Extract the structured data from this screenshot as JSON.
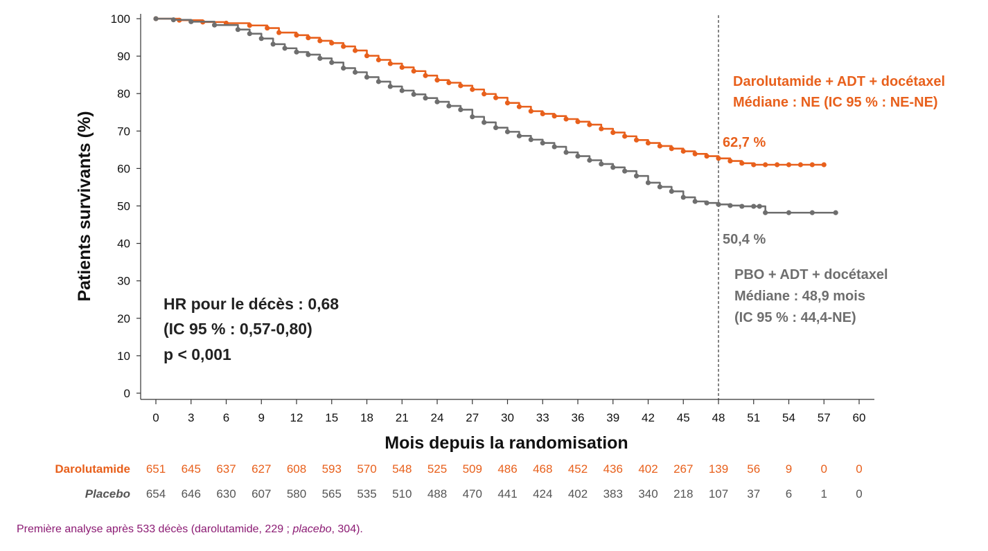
{
  "chart_data": {
    "type": "line",
    "xlabel": "Mois depuis la randomisation",
    "ylabel": "Patients survivants (%)",
    "xlim": [
      0,
      60
    ],
    "ylim": [
      0,
      100
    ],
    "xticks": [
      "0",
      "3",
      "6",
      "9",
      "12",
      "15",
      "18",
      "21",
      "24",
      "27",
      "30",
      "33",
      "36",
      "39",
      "42",
      "45",
      "48",
      "51",
      "54",
      "57",
      "60"
    ],
    "yticks": [
      "0",
      "10",
      "20",
      "30",
      "40",
      "50",
      "60",
      "70",
      "80",
      "90",
      "100"
    ],
    "reference_line_x": 48,
    "series": [
      {
        "name": "Darolutamide + ADT + docétaxel",
        "color": "#e8601c",
        "x": [
          0,
          2,
          4,
          6,
          8,
          9.5,
          10.5,
          12,
          13,
          14,
          15,
          16,
          17,
          18,
          19,
          20,
          21,
          22,
          23,
          24,
          25,
          26,
          27,
          28,
          29,
          30,
          31,
          32,
          33,
          34,
          35,
          36,
          37,
          38,
          39,
          40,
          41,
          42,
          43,
          44,
          45,
          46,
          47,
          48,
          49,
          50,
          51,
          52,
          53,
          54,
          55,
          56,
          57
        ],
        "y": [
          100,
          99.6,
          99.1,
          98.8,
          98.2,
          97.5,
          96.3,
          95.6,
          94.9,
          94.1,
          93.5,
          92.6,
          91.5,
          90.1,
          89.0,
          88.0,
          87.0,
          86.0,
          84.8,
          83.6,
          82.9,
          82.1,
          81.1,
          79.9,
          78.9,
          77.5,
          76.5,
          75.3,
          74.6,
          74.0,
          73.2,
          72.5,
          71.7,
          70.6,
          69.6,
          68.6,
          67.6,
          66.8,
          66.0,
          65.3,
          64.6,
          63.9,
          63.3,
          62.7,
          62.0,
          61.4,
          61.0,
          61.0,
          61.0,
          61.0,
          61.0,
          61.0,
          61.0
        ]
      },
      {
        "name": "PBO + ADT + docétaxel",
        "color": "#6e6e6e",
        "x": [
          0,
          1.5,
          3,
          5,
          7,
          8,
          9,
          10,
          11,
          12,
          13,
          14,
          15,
          16,
          17,
          18,
          19,
          20,
          21,
          22,
          23,
          24,
          25,
          26,
          27,
          28,
          29,
          30,
          31,
          32,
          33,
          34,
          35,
          36,
          37,
          38,
          39,
          40,
          41,
          42,
          43,
          44,
          45,
          46,
          47,
          48,
          49,
          50,
          51,
          51.5,
          52,
          54,
          56,
          58
        ],
        "y": [
          100,
          99.7,
          99.2,
          98.3,
          97.1,
          96.0,
          94.7,
          93.2,
          92.1,
          91.1,
          90.4,
          89.4,
          88.3,
          86.8,
          85.7,
          84.4,
          83.2,
          81.9,
          80.8,
          79.8,
          78.8,
          77.8,
          76.7,
          75.7,
          73.8,
          72.3,
          70.9,
          69.8,
          68.7,
          67.7,
          66.8,
          65.8,
          64.3,
          63.3,
          62.2,
          61.2,
          60.3,
          59.3,
          58.0,
          56.2,
          55.1,
          53.9,
          52.3,
          51.2,
          50.8,
          50.4,
          50.1,
          49.9,
          49.9,
          49.9,
          48.2,
          48.2,
          48.2,
          48.2
        ]
      }
    ],
    "annotations": {
      "dar_value": "62,7 %",
      "pbo_value": "50,4 %"
    }
  },
  "stats": {
    "line1": "HR pour le décès : 0,68",
    "line2": "(IC 95 % : 0,57-0,80)",
    "line3": "p < 0,001"
  },
  "legend": {
    "dar_line1": "Darolutamide + ADT + docétaxel",
    "dar_line2": "Médiane : NE (IC 95 % : NE-NE)",
    "pbo_line1": "PBO + ADT + docétaxel",
    "pbo_line2": "Médiane : 48,9 mois",
    "pbo_line3": "(IC 95 % : 44,4-NE)"
  },
  "risk_table": {
    "darolutamide_label": "Darolutamide",
    "placebo_label": "Placebo",
    "darolutamide": [
      "651",
      "645",
      "637",
      "627",
      "608",
      "593",
      "570",
      "548",
      "525",
      "509",
      "486",
      "468",
      "452",
      "436",
      "402",
      "267",
      "139",
      "56",
      "9",
      "0",
      "0"
    ],
    "placebo": [
      "654",
      "646",
      "630",
      "607",
      "580",
      "565",
      "535",
      "510",
      "488",
      "470",
      "441",
      "424",
      "402",
      "383",
      "340",
      "218",
      "107",
      "37",
      "6",
      "1",
      "0"
    ]
  },
  "footnote": {
    "before": "Première analyse après 533 décès (darolutamide, 229 ; ",
    "italic": "placebo",
    "after": ", 304)."
  }
}
